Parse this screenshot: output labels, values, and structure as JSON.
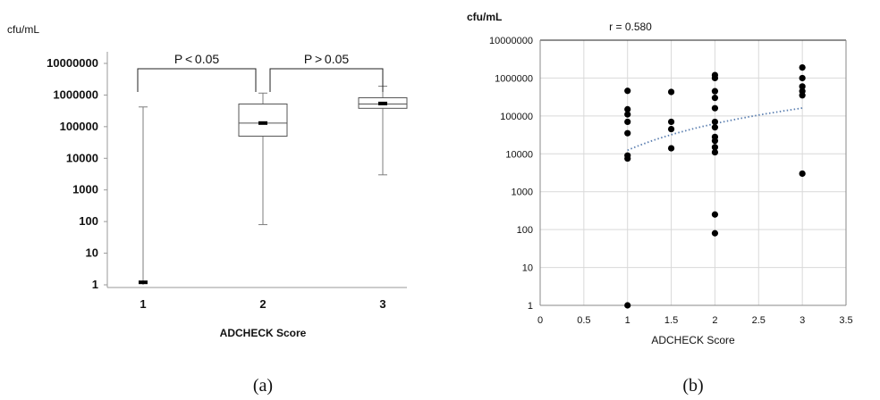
{
  "chart_data": [
    {
      "type": "box",
      "caption": "(a)",
      "unit_label": "cfu/mL",
      "xlabel": "ADCHECK Score",
      "y_scale": "log",
      "y_ticks": [
        "1",
        "10",
        "100",
        "1000",
        "10000",
        "100000",
        "1000000",
        "10000000"
      ],
      "categories": [
        "1",
        "2",
        "3"
      ],
      "boxes": [
        {
          "category": "1",
          "min": 1,
          "q1": 1,
          "median": 1,
          "q3": 1,
          "max": 420000,
          "mean": 1.2
        },
        {
          "category": "2",
          "min": 80,
          "q1": 50000,
          "median": 130000,
          "q3": 520000,
          "max": 1150000,
          "mean": 130000
        },
        {
          "category": "3",
          "min": 3000,
          "q1": 380000,
          "median": 520000,
          "q3": 820000,
          "max": 1900000,
          "mean": 540000
        }
      ],
      "annotations": [
        {
          "text": "P < 0.05",
          "between": [
            "1",
            "2"
          ]
        },
        {
          "text": "P > 0.05",
          "between": [
            "2",
            "3"
          ]
        }
      ]
    },
    {
      "type": "scatter",
      "caption": "(b)",
      "unit_label": "cfu/mL",
      "annotation": "r = 0.580",
      "xlabel": "ADCHECK Score",
      "y_scale": "log",
      "xlim": [
        0,
        3.5
      ],
      "x_ticks": [
        "0",
        "0.5",
        "1",
        "1.5",
        "2",
        "2.5",
        "3",
        "3.5"
      ],
      "y_ticks": [
        "1",
        "10",
        "100",
        "1000",
        "10000",
        "100000",
        "1000000",
        "10000000"
      ],
      "grid": true,
      "trendline": "logarithmic (dotted)",
      "points": [
        {
          "x": 1,
          "y": 1
        },
        {
          "x": 1,
          "y": 7500
        },
        {
          "x": 1,
          "y": 9000
        },
        {
          "x": 1,
          "y": 35000
        },
        {
          "x": 1,
          "y": 70000
        },
        {
          "x": 1,
          "y": 110000
        },
        {
          "x": 1,
          "y": 150000
        },
        {
          "x": 1,
          "y": 460000
        },
        {
          "x": 1.5,
          "y": 14000
        },
        {
          "x": 1.5,
          "y": 45000
        },
        {
          "x": 1.5,
          "y": 70000
        },
        {
          "x": 1.5,
          "y": 430000
        },
        {
          "x": 2,
          "y": 80
        },
        {
          "x": 2,
          "y": 250
        },
        {
          "x": 2,
          "y": 11000
        },
        {
          "x": 2,
          "y": 15000
        },
        {
          "x": 2,
          "y": 22000
        },
        {
          "x": 2,
          "y": 28000
        },
        {
          "x": 2,
          "y": 50000
        },
        {
          "x": 2,
          "y": 70000
        },
        {
          "x": 2,
          "y": 160000
        },
        {
          "x": 2,
          "y": 300000
        },
        {
          "x": 2,
          "y": 450000
        },
        {
          "x": 2,
          "y": 1000000
        },
        {
          "x": 2,
          "y": 1200000
        },
        {
          "x": 3,
          "y": 3000
        },
        {
          "x": 3,
          "y": 350000
        },
        {
          "x": 3,
          "y": 450000
        },
        {
          "x": 3,
          "y": 600000
        },
        {
          "x": 3,
          "y": 1000000
        },
        {
          "x": 3,
          "y": 1900000
        }
      ],
      "colors": {
        "points": "#000000",
        "trendline": "#5b7fb0",
        "grid": "#d9d9d9"
      }
    }
  ]
}
